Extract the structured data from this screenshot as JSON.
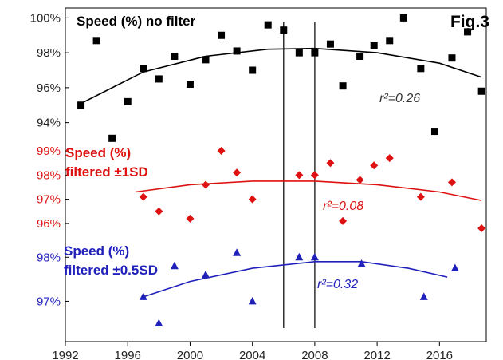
{
  "chart_data": {
    "type": "scatter",
    "figure_label": "Fig.3",
    "x_ticks": [
      "1992",
      "1996",
      "2000",
      "2004",
      "2008",
      "2012",
      "2016"
    ],
    "xlim": [
      1992,
      2019
    ],
    "vertical_markers": [
      2006,
      2008
    ],
    "panels": [
      {
        "id": "no-filter",
        "title": "Speed (%) no filter",
        "color": "#000000",
        "marker": "square",
        "y_ticks": [
          "100%",
          "98%",
          "96%",
          "94%"
        ],
        "y_tick_values": [
          100,
          98,
          96,
          94
        ],
        "ylim": [
          93.8,
          100.2
        ],
        "r2_label": "r²=0.26",
        "points": [
          [
            1993,
            95.0
          ],
          [
            1994,
            98.7
          ],
          [
            1995,
            93.1
          ],
          [
            1996,
            95.2
          ],
          [
            1997,
            97.1
          ],
          [
            1998,
            96.5
          ],
          [
            1999,
            97.8
          ],
          [
            2000,
            96.2
          ],
          [
            2001,
            97.6
          ],
          [
            2002,
            99.0
          ],
          [
            2003,
            98.1
          ],
          [
            2004,
            97.0
          ],
          [
            2005,
            99.6
          ],
          [
            2006,
            99.3
          ],
          [
            2007,
            98.0
          ],
          [
            2008,
            98.0
          ],
          [
            2009,
            98.5
          ],
          [
            2009.8,
            96.1
          ],
          [
            2010.9,
            97.8
          ],
          [
            2011.8,
            98.4
          ],
          [
            2012.8,
            98.7
          ],
          [
            2013.7,
            100.0
          ],
          [
            2014.8,
            97.1
          ],
          [
            2015.7,
            93.5
          ],
          [
            2016.8,
            97.7
          ],
          [
            2017.8,
            99.2
          ],
          [
            2018.7,
            95.8
          ]
        ],
        "trend": [
          [
            1993,
            95.1
          ],
          [
            1997,
            96.9
          ],
          [
            2001,
            97.8
          ],
          [
            2005,
            98.2
          ],
          [
            2008,
            98.25
          ],
          [
            2012,
            98.0
          ],
          [
            2016,
            97.4
          ],
          [
            2018.7,
            96.6
          ]
        ]
      },
      {
        "id": "filtered-1sd",
        "title_lines": [
          "Speed (%)",
          "filtered ±1SD"
        ],
        "color": "#dd1111",
        "marker": "diamond",
        "y_ticks": [
          "99%",
          "98%",
          "97%",
          "96%"
        ],
        "y_tick_values": [
          99,
          98,
          97,
          96
        ],
        "ylim": [
          95.6,
          99.2
        ],
        "r2_label": "r²=0.08",
        "points": [
          [
            1997,
            97.1
          ],
          [
            1998,
            96.5
          ],
          [
            2000,
            96.2
          ],
          [
            2001,
            97.6
          ],
          [
            2002,
            99.0
          ],
          [
            2003,
            98.1
          ],
          [
            2004,
            97.0
          ],
          [
            2007,
            98.0
          ],
          [
            2008,
            98.0
          ],
          [
            2009,
            98.5
          ],
          [
            2009.8,
            96.1
          ],
          [
            2010.9,
            97.8
          ],
          [
            2011.8,
            98.4
          ],
          [
            2012.8,
            98.7
          ],
          [
            2014.8,
            97.1
          ],
          [
            2016.8,
            97.7
          ],
          [
            2018.7,
            95.8
          ]
        ],
        "trend": [
          [
            1996.5,
            97.3
          ],
          [
            2000,
            97.6
          ],
          [
            2004,
            97.75
          ],
          [
            2008,
            97.75
          ],
          [
            2012,
            97.6
          ],
          [
            2016,
            97.3
          ],
          [
            2018.7,
            96.95
          ]
        ]
      },
      {
        "id": "filtered-0.5sd",
        "title_lines": [
          "Speed (%)",
          "filtered ±0.5SD"
        ],
        "color": "#2020bb",
        "marker": "triangle",
        "y_ticks": [
          "98%",
          "97%"
        ],
        "y_tick_values": [
          98,
          97
        ],
        "ylim": [
          96.5,
          98.15
        ],
        "r2_label": "r²=0.32",
        "points": [
          [
            1997,
            97.1
          ],
          [
            1998,
            96.5
          ],
          [
            1999,
            97.8
          ],
          [
            2001,
            97.6
          ],
          [
            2003,
            98.1
          ],
          [
            2004,
            97.0
          ],
          [
            2007,
            98.0
          ],
          [
            2008,
            98.0
          ],
          [
            2011,
            97.85
          ],
          [
            2015,
            97.1
          ],
          [
            2017,
            97.75
          ]
        ],
        "trend": [
          [
            1997,
            97.1
          ],
          [
            2000,
            97.45
          ],
          [
            2004,
            97.75
          ],
          [
            2008,
            97.9
          ],
          [
            2011,
            97.9
          ],
          [
            2014,
            97.75
          ],
          [
            2016.5,
            97.55
          ]
        ]
      }
    ]
  }
}
